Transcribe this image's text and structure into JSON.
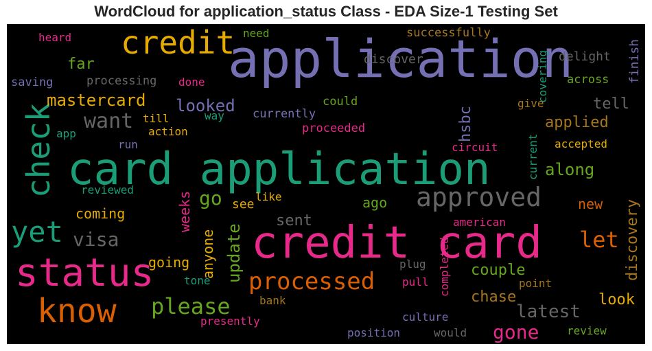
{
  "title": "WordCloud for application_status Class - EDA Size-1 Testing Set",
  "chart_data": {
    "type": "wordcloud",
    "background": "#000000",
    "palette": "Dark2",
    "words": [
      {
        "text": "application",
        "weight": 76,
        "color": "#7570b3",
        "vertical": false
      },
      {
        "text": "card application",
        "weight": 64,
        "color": "#1b9e77",
        "vertical": false
      },
      {
        "text": "credit card",
        "weight": 64,
        "color": "#e7298a",
        "vertical": false
      },
      {
        "text": "status",
        "weight": 56,
        "color": "#e7298a",
        "vertical": false
      },
      {
        "text": "know",
        "weight": 48,
        "color": "#d95f02",
        "vertical": false
      },
      {
        "text": "credit",
        "weight": 46,
        "color": "#e6ab02",
        "vertical": false
      },
      {
        "text": "check",
        "weight": 46,
        "color": "#1b9e77",
        "vertical": true
      },
      {
        "text": "yet",
        "weight": 42,
        "color": "#1b9e77",
        "vertical": false
      },
      {
        "text": "approved",
        "weight": 38,
        "color": "#666666",
        "vertical": false
      },
      {
        "text": "processed",
        "weight": 34,
        "color": "#d95f02",
        "vertical": false
      },
      {
        "text": "please",
        "weight": 32,
        "color": "#66a61e",
        "vertical": false
      },
      {
        "text": "let",
        "weight": 32,
        "color": "#d95f02",
        "vertical": false
      },
      {
        "text": "want",
        "weight": 30,
        "color": "#666666",
        "vertical": false
      },
      {
        "text": "visa",
        "weight": 28,
        "color": "#666666",
        "vertical": false
      },
      {
        "text": "gone",
        "weight": 28,
        "color": "#e7298a",
        "vertical": false
      },
      {
        "text": "go",
        "weight": 28,
        "color": "#66a61e",
        "vertical": false
      },
      {
        "text": "latest",
        "weight": 26,
        "color": "#666666",
        "vertical": false
      },
      {
        "text": "mastercard",
        "weight": 24,
        "color": "#e6ab02",
        "vertical": false
      },
      {
        "text": "looked",
        "weight": 24,
        "color": "#7570b3",
        "vertical": false
      },
      {
        "text": "along",
        "weight": 24,
        "color": "#66a61e",
        "vertical": false
      },
      {
        "text": "update",
        "weight": 24,
        "color": "#66a61e",
        "vertical": true
      },
      {
        "text": "hsbc",
        "weight": 22,
        "color": "#7570b3",
        "vertical": true
      },
      {
        "text": "far",
        "weight": 22,
        "color": "#66a61e",
        "vertical": false
      },
      {
        "text": "tell",
        "weight": 22,
        "color": "#666666",
        "vertical": false
      },
      {
        "text": "applied",
        "weight": 22,
        "color": "#a6761d",
        "vertical": false
      },
      {
        "text": "couple",
        "weight": 22,
        "color": "#66a61e",
        "vertical": false
      },
      {
        "text": "discovery",
        "weight": 22,
        "color": "#a6761d",
        "vertical": true
      },
      {
        "text": "chase",
        "weight": 22,
        "color": "#a6761d",
        "vertical": false
      },
      {
        "text": "look",
        "weight": 22,
        "color": "#e6ab02",
        "vertical": false
      },
      {
        "text": "sent",
        "weight": 22,
        "color": "#666666",
        "vertical": false
      },
      {
        "text": "new",
        "weight": 20,
        "color": "#d95f02",
        "vertical": false
      },
      {
        "text": "coming",
        "weight": 20,
        "color": "#e6ab02",
        "vertical": false
      },
      {
        "text": "going",
        "weight": 20,
        "color": "#e6ab02",
        "vertical": false
      },
      {
        "text": "ago",
        "weight": 20,
        "color": "#66a61e",
        "vertical": false
      },
      {
        "text": "weeks",
        "weight": 20,
        "color": "#e7298a",
        "vertical": true
      },
      {
        "text": "anyone",
        "weight": 20,
        "color": "#e6ab02",
        "vertical": true
      },
      {
        "text": "see",
        "weight": 18,
        "color": "#e6ab02",
        "vertical": false
      },
      {
        "text": "discover",
        "weight": 18,
        "color": "#666666",
        "vertical": false
      },
      {
        "text": "delight",
        "weight": 18,
        "color": "#666666",
        "vertical": false
      },
      {
        "text": "finish",
        "weight": 18,
        "color": "#7570b3",
        "vertical": true
      },
      {
        "text": "processing",
        "weight": 17,
        "color": "#666666",
        "vertical": false
      },
      {
        "text": "successfully",
        "weight": 17,
        "color": "#a6761d",
        "vertical": false
      },
      {
        "text": "across",
        "weight": 17,
        "color": "#66a61e",
        "vertical": false
      },
      {
        "text": "currently",
        "weight": 17,
        "color": "#7570b3",
        "vertical": false
      },
      {
        "text": "could",
        "weight": 17,
        "color": "#66a61e",
        "vertical": false
      },
      {
        "text": "proceeded",
        "weight": 17,
        "color": "#e7298a",
        "vertical": false
      },
      {
        "text": "saving",
        "weight": 17,
        "color": "#7570b3",
        "vertical": false
      },
      {
        "text": "heard",
        "weight": 16,
        "color": "#e7298a",
        "vertical": false
      },
      {
        "text": "need",
        "weight": 16,
        "color": "#66a61e",
        "vertical": false
      },
      {
        "text": "done",
        "weight": 16,
        "color": "#e7298a",
        "vertical": false
      },
      {
        "text": "covering",
        "weight": 16,
        "color": "#1b9e77",
        "vertical": true
      },
      {
        "text": "give",
        "weight": 16,
        "color": "#a6761d",
        "vertical": false
      },
      {
        "text": "till",
        "weight": 16,
        "color": "#e6ab02",
        "vertical": false
      },
      {
        "text": "way",
        "weight": 16,
        "color": "#1b9e77",
        "vertical": false
      },
      {
        "text": "action",
        "weight": 16,
        "color": "#e6ab02",
        "vertical": false
      },
      {
        "text": "app",
        "weight": 16,
        "color": "#1b9e77",
        "vertical": false
      },
      {
        "text": "run",
        "weight": 16,
        "color": "#7570b3",
        "vertical": false
      },
      {
        "text": "circuit",
        "weight": 16,
        "color": "#e7298a",
        "vertical": false
      },
      {
        "text": "accepted",
        "weight": 16,
        "color": "#e6ab02",
        "vertical": false
      },
      {
        "text": "current",
        "weight": 16,
        "color": "#1b9e77",
        "vertical": true
      },
      {
        "text": "reviewed",
        "weight": 16,
        "color": "#1b9e77",
        "vertical": false
      },
      {
        "text": "like",
        "weight": 16,
        "color": "#e6ab02",
        "vertical": false
      },
      {
        "text": "american",
        "weight": 16,
        "color": "#e7298a",
        "vertical": false
      },
      {
        "text": "completed",
        "weight": 16,
        "color": "#e7298a",
        "vertical": true
      },
      {
        "text": "plug",
        "weight": 16,
        "color": "#666666",
        "vertical": false
      },
      {
        "text": "pull",
        "weight": 16,
        "color": "#e7298a",
        "vertical": false
      },
      {
        "text": "point",
        "weight": 16,
        "color": "#a6761d",
        "vertical": false
      },
      {
        "text": "tone",
        "weight": 16,
        "color": "#1b9e77",
        "vertical": false
      },
      {
        "text": "bank",
        "weight": 16,
        "color": "#a6761d",
        "vertical": false
      },
      {
        "text": "presently",
        "weight": 16,
        "color": "#e7298a",
        "vertical": false
      },
      {
        "text": "culture",
        "weight": 16,
        "color": "#7570b3",
        "vertical": false
      },
      {
        "text": "position",
        "weight": 16,
        "color": "#7570b3",
        "vertical": false
      },
      {
        "text": "would",
        "weight": 16,
        "color": "#666666",
        "vertical": false
      },
      {
        "text": "review",
        "weight": 16,
        "color": "#66a61e",
        "vertical": false
      }
    ]
  }
}
